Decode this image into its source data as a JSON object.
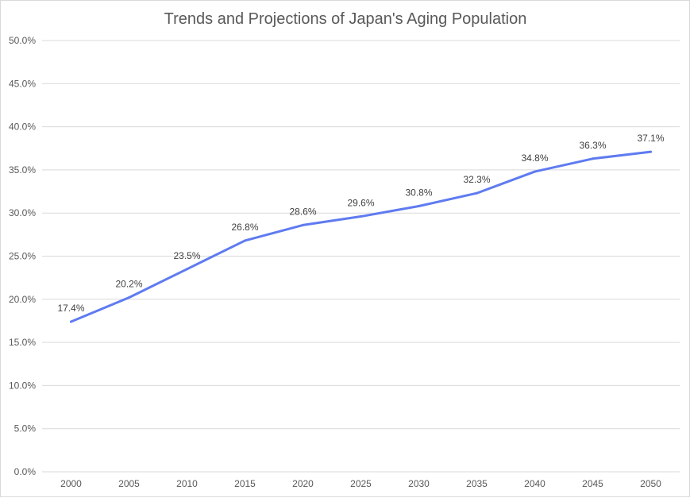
{
  "chart_data": {
    "type": "line",
    "title": "Trends and Projections of Japan's Aging Population",
    "xlabel": "",
    "ylabel": "",
    "categories": [
      "2000",
      "2005",
      "2010",
      "2015",
      "2020",
      "2025",
      "2030",
      "2035",
      "2040",
      "2045",
      "2050"
    ],
    "series": [
      {
        "values": [
          17.4,
          20.2,
          23.5,
          26.8,
          28.6,
          29.6,
          30.8,
          32.3,
          34.8,
          36.3,
          37.1
        ],
        "color": "#5f7bf0"
      }
    ],
    "data_labels": [
      "17.4%",
      "20.2%",
      "23.5%",
      "26.8%",
      "28.6%",
      "29.6%",
      "30.8%",
      "32.3%",
      "34.8%",
      "36.3%",
      "37.1%"
    ],
    "ylim": [
      0,
      50
    ],
    "y_ticks": [
      0,
      5,
      10,
      15,
      20,
      25,
      30,
      35,
      40,
      45,
      50
    ],
    "y_tick_labels": [
      "0.0%",
      "5.0%",
      "10.0%",
      "15.0%",
      "20.0%",
      "25.0%",
      "30.0%",
      "35.0%",
      "40.0%",
      "45.0%",
      "50.0%"
    ],
    "grid": true,
    "legend": "none"
  }
}
